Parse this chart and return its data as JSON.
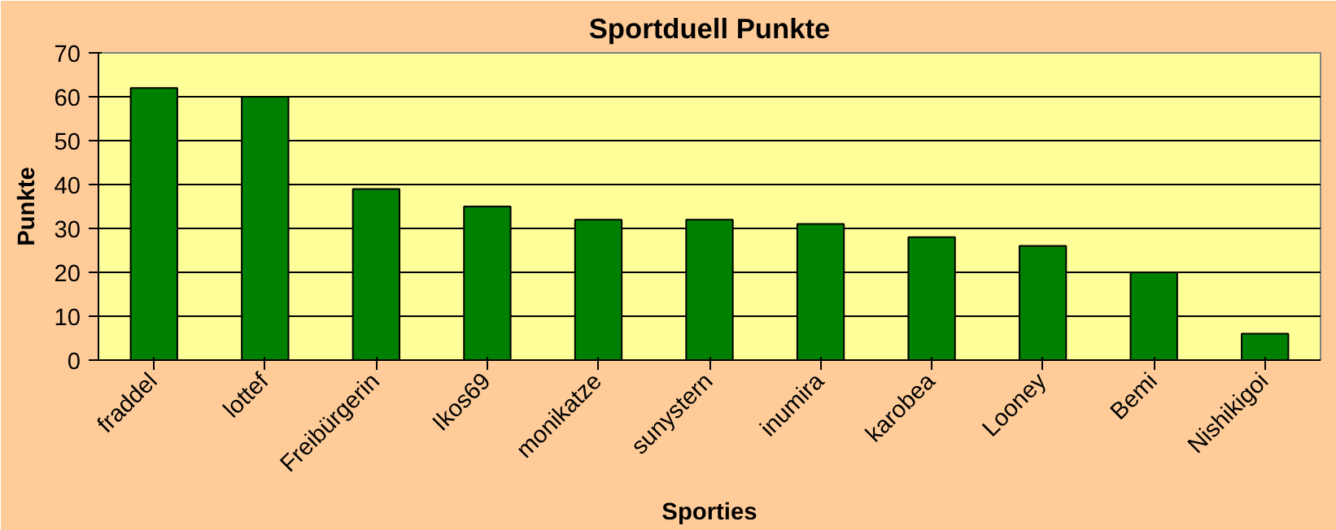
{
  "chart_data": {
    "type": "bar",
    "title": "Sportduell Punkte",
    "xlabel": "Sporties",
    "ylabel": "Punkte",
    "categories": [
      "fraddel",
      "lottef",
      "Freibürgerin",
      "Ikos69",
      "monikatze",
      "sunystern",
      "inumira",
      "karobea",
      "Looney",
      "Bemi",
      "Nishikigoi"
    ],
    "values": [
      62,
      60,
      39,
      35,
      32,
      32,
      31,
      28,
      26,
      20,
      6
    ],
    "color": "#008000",
    "ylim": [
      0,
      70
    ],
    "yticks": [
      0,
      10,
      20,
      30,
      40,
      50,
      60,
      70
    ],
    "grid": "y"
  }
}
